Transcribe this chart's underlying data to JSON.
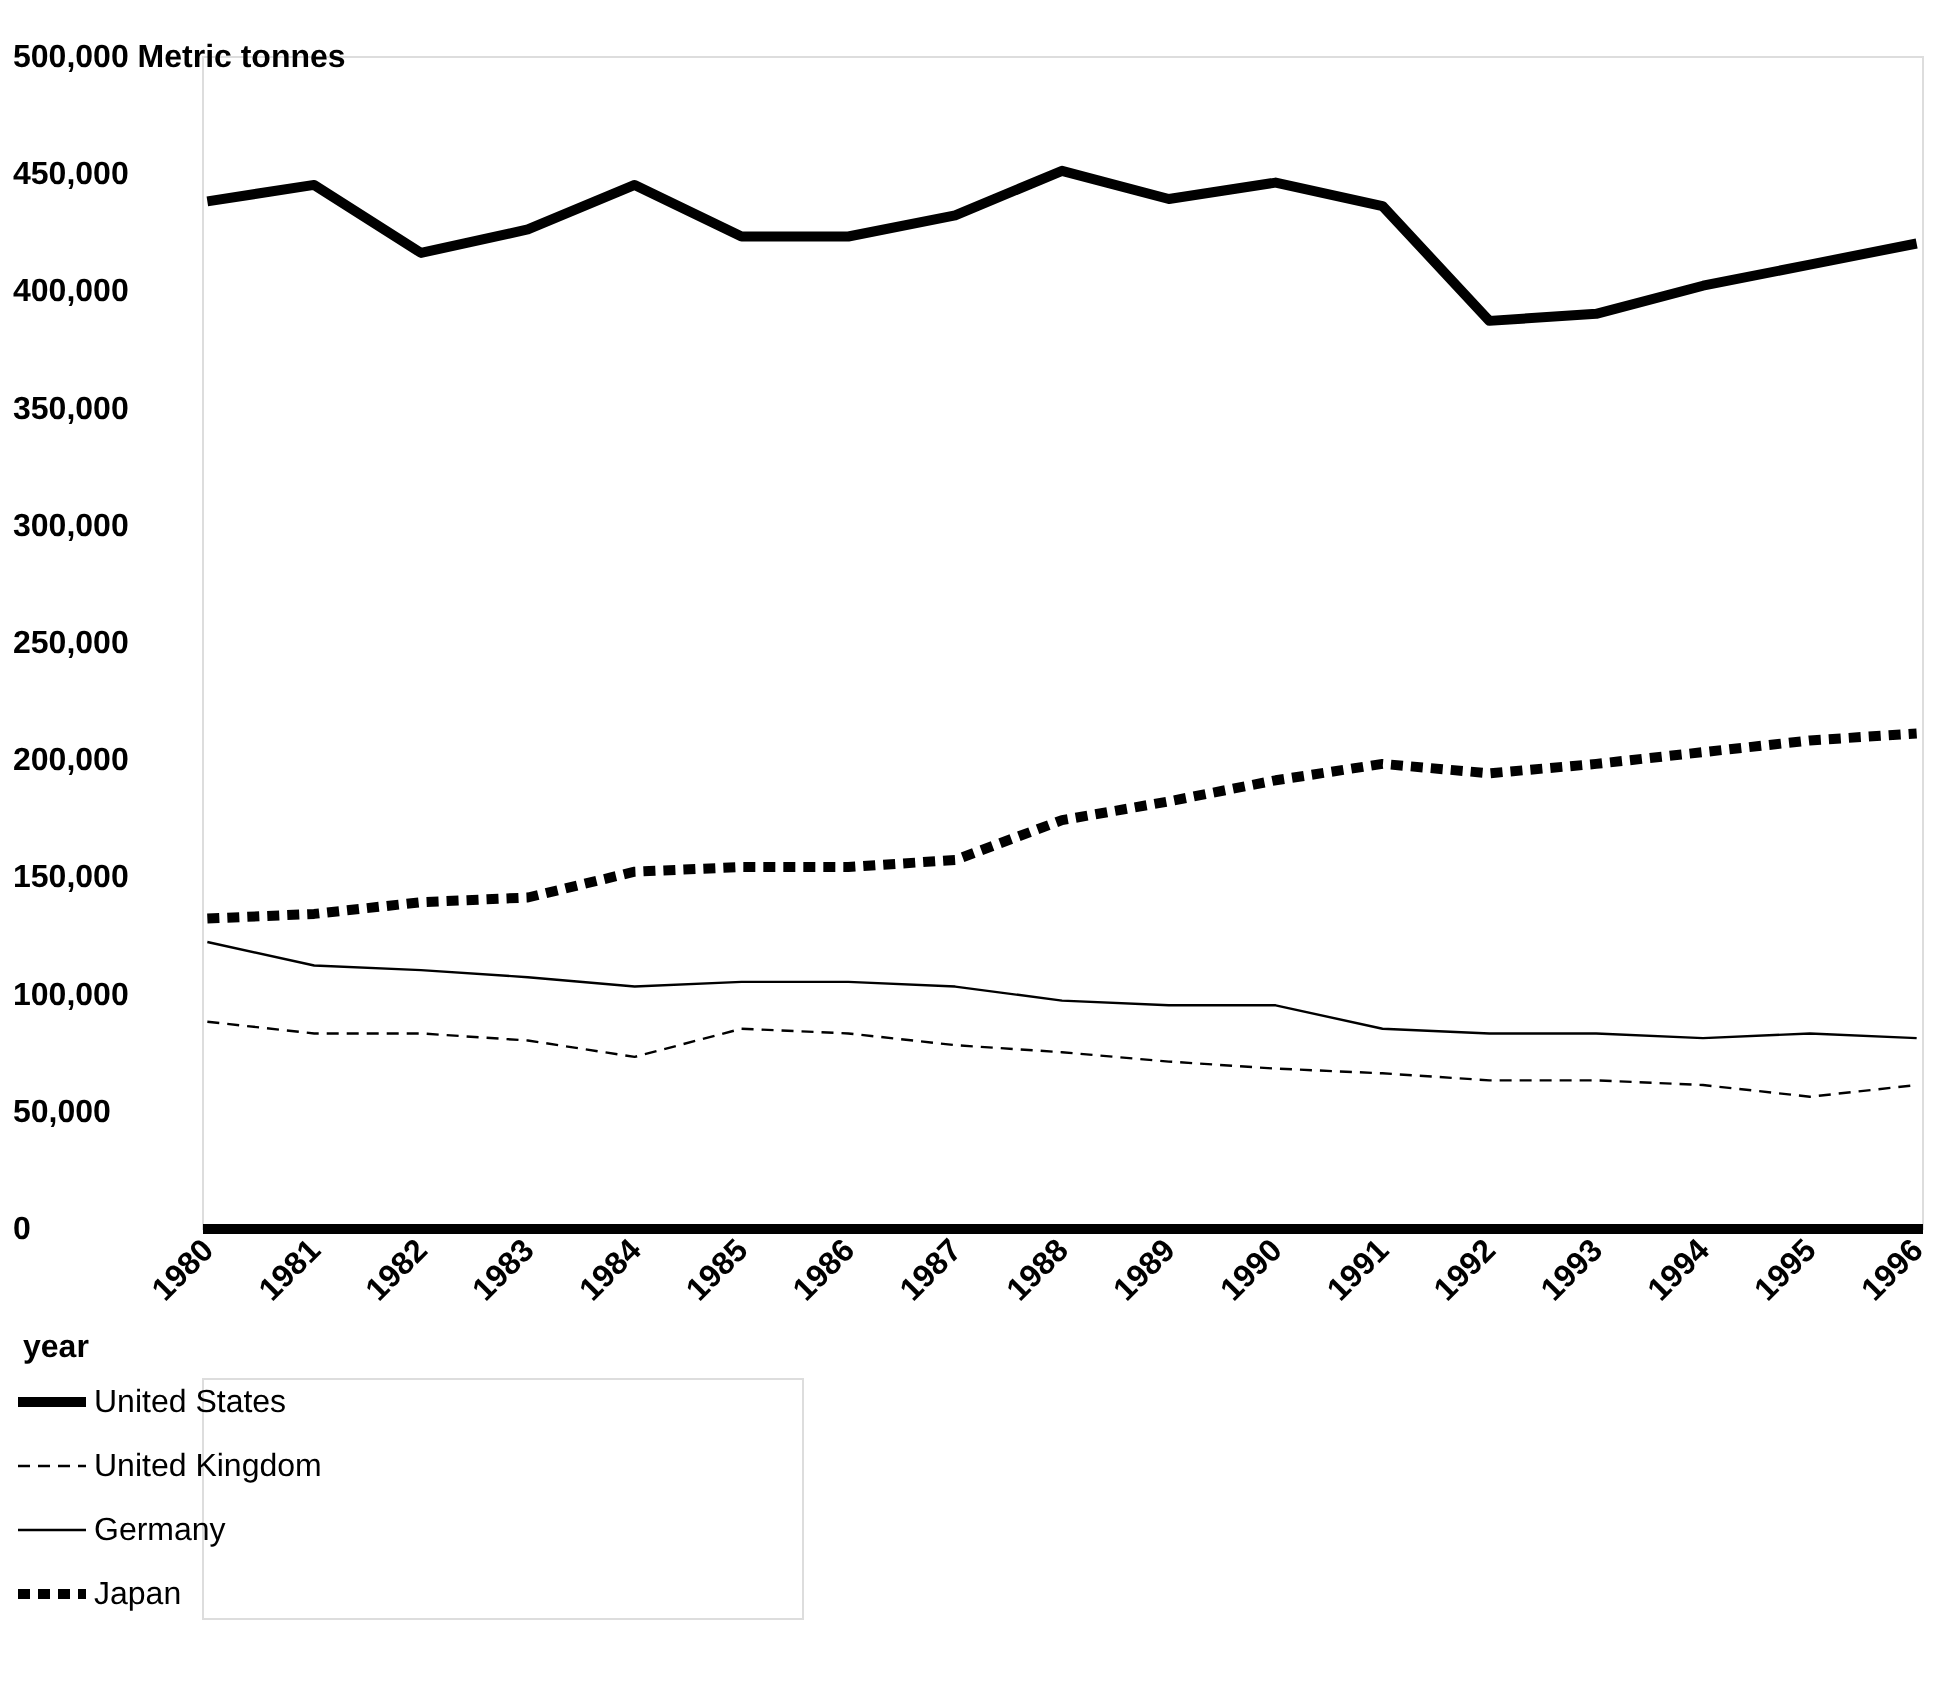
{
  "chart_data": {
    "type": "line",
    "xlabel": "year",
    "categories": [
      "1980",
      "1981",
      "1982",
      "1983",
      "1984",
      "1985",
      "1986",
      "1987",
      "1988",
      "1989",
      "1990",
      "1991",
      "1992",
      "1993",
      "1994",
      "1995",
      "1996"
    ],
    "series": [
      {
        "name": "United States",
        "color": "#000000",
        "line_style": "solid",
        "values": [
          438000,
          445000,
          416000,
          426000,
          445000,
          423000,
          423000,
          432000,
          451000,
          439000,
          446000,
          436000,
          387000,
          390000,
          402000,
          411000,
          420000
        ]
      },
      {
        "name": "United Kingdom",
        "color": "#000000",
        "line_style": "dashed",
        "values": [
          88000,
          83000,
          83000,
          80000,
          73000,
          85000,
          83000,
          78000,
          75000,
          71000,
          68000,
          66000,
          63000,
          63000,
          61000,
          56000,
          61000
        ]
      },
      {
        "name": "Germany",
        "color": "#000000",
        "line_style": "solid",
        "values": [
          122000,
          112000,
          110000,
          107000,
          103000,
          105000,
          105000,
          103000,
          97000,
          95000,
          95000,
          85000,
          83000,
          83000,
          81000,
          83000,
          81000
        ]
      },
      {
        "name": "Japan",
        "color": "#000000",
        "line_style": "dashed",
        "values": [
          132000,
          134000,
          139000,
          141000,
          152000,
          154000,
          154000,
          157000,
          174000,
          182000,
          191000,
          198000,
          194000,
          198000,
          203000,
          208000,
          211000
        ]
      }
    ],
    "ylim": [
      0,
      500000
    ],
    "yticks": [
      0,
      {
        "value": 50000,
        "label": "50,000"
      },
      {
        "value": 100000,
        "label": "100,000"
      },
      {
        "value": 150000,
        "label": "150,000"
      },
      {
        "value": 200000,
        "label": "200,000"
      },
      {
        "value": 250000,
        "label": "250,000"
      },
      {
        "value": 300000,
        "label": "300,000"
      },
      {
        "value": 350000,
        "label": "350,000"
      },
      {
        "value": 400000,
        "label": "400,000"
      },
      {
        "value": 450000,
        "label": "450,000"
      },
      {
        "value": 500000,
        "label": "500,000 Metric tonnes"
      }
    ],
    "grid": false,
    "legend": "bottom left",
    "marker": "none"
  }
}
